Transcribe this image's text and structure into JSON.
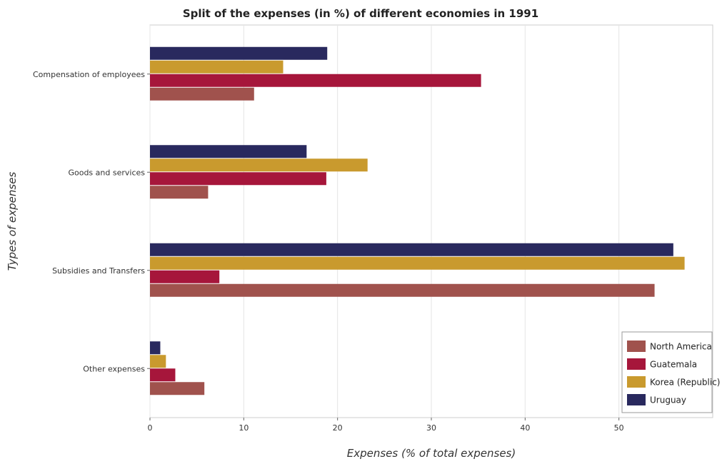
{
  "chart_data": {
    "type": "bar",
    "orientation": "horizontal",
    "title": "Split of the expenses (in %) of different economies in 1991",
    "xlabel": "Expenses (% of total expenses)",
    "ylabel": "Types of expenses",
    "categories": [
      "Compensation of employees",
      "Goods and services",
      "Subsidies and Transfers",
      "Other expenses"
    ],
    "xlim": [
      0,
      60
    ],
    "xticks": [
      0,
      10,
      20,
      30,
      40,
      50
    ],
    "grid": true,
    "legend_position": "bottom-right",
    "series": [
      {
        "name": "North America",
        "color": "#a0524d",
        "values": [
          11.1,
          6.2,
          53.8,
          5.8
        ]
      },
      {
        "name": "Guatemala",
        "color": "#a6163b",
        "values": [
          35.3,
          18.8,
          7.4,
          2.7
        ]
      },
      {
        "name": "Korea (Republic)",
        "color": "#c99a2e",
        "values": [
          14.2,
          23.2,
          57.0,
          1.7
        ]
      },
      {
        "name": "Uruguay",
        "color": "#29295e",
        "values": [
          18.9,
          16.7,
          55.8,
          1.1
        ]
      }
    ]
  }
}
